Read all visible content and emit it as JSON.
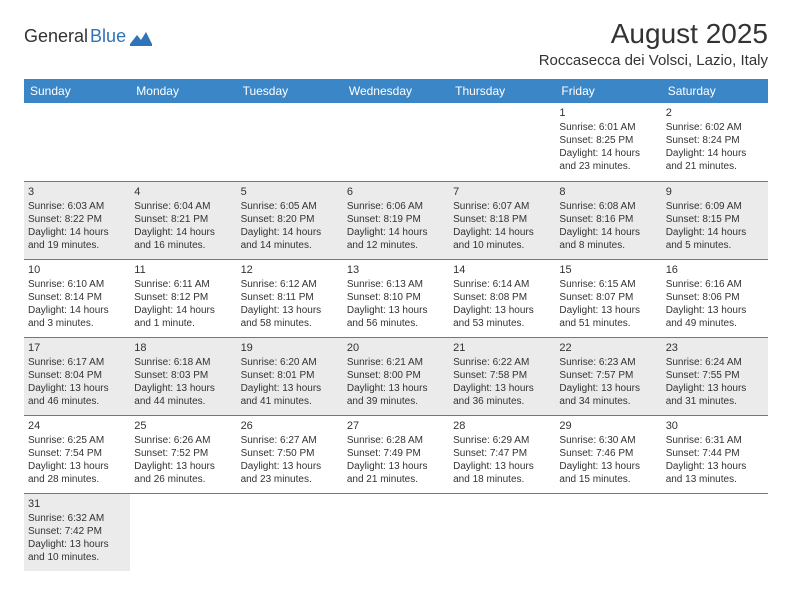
{
  "logo": {
    "text_dark": "General",
    "text_blue": "Blue"
  },
  "title": {
    "month": "August 2025",
    "location": "Roccasecca dei Volsci, Lazio, Italy"
  },
  "colors": {
    "header_bg": "#3b86c7",
    "header_text": "#ffffff",
    "shade_bg": "#ebebeb",
    "rule": "#3b86c7",
    "text": "#333333"
  },
  "columns": [
    "Sunday",
    "Monday",
    "Tuesday",
    "Wednesday",
    "Thursday",
    "Friday",
    "Saturday"
  ],
  "weeks": [
    [
      {
        "n": "",
        "lines": [],
        "shade": false,
        "empty": true
      },
      {
        "n": "",
        "lines": [],
        "shade": false,
        "empty": true
      },
      {
        "n": "",
        "lines": [],
        "shade": false,
        "empty": true
      },
      {
        "n": "",
        "lines": [],
        "shade": false,
        "empty": true
      },
      {
        "n": "",
        "lines": [],
        "shade": false,
        "empty": true
      },
      {
        "n": "1",
        "lines": [
          "Sunrise: 6:01 AM",
          "Sunset: 8:25 PM",
          "Daylight: 14 hours",
          "and 23 minutes."
        ],
        "shade": false
      },
      {
        "n": "2",
        "lines": [
          "Sunrise: 6:02 AM",
          "Sunset: 8:24 PM",
          "Daylight: 14 hours",
          "and 21 minutes."
        ],
        "shade": false
      }
    ],
    [
      {
        "n": "3",
        "lines": [
          "Sunrise: 6:03 AM",
          "Sunset: 8:22 PM",
          "Daylight: 14 hours",
          "and 19 minutes."
        ],
        "shade": true
      },
      {
        "n": "4",
        "lines": [
          "Sunrise: 6:04 AM",
          "Sunset: 8:21 PM",
          "Daylight: 14 hours",
          "and 16 minutes."
        ],
        "shade": true
      },
      {
        "n": "5",
        "lines": [
          "Sunrise: 6:05 AM",
          "Sunset: 8:20 PM",
          "Daylight: 14 hours",
          "and 14 minutes."
        ],
        "shade": true
      },
      {
        "n": "6",
        "lines": [
          "Sunrise: 6:06 AM",
          "Sunset: 8:19 PM",
          "Daylight: 14 hours",
          "and 12 minutes."
        ],
        "shade": true
      },
      {
        "n": "7",
        "lines": [
          "Sunrise: 6:07 AM",
          "Sunset: 8:18 PM",
          "Daylight: 14 hours",
          "and 10 minutes."
        ],
        "shade": true
      },
      {
        "n": "8",
        "lines": [
          "Sunrise: 6:08 AM",
          "Sunset: 8:16 PM",
          "Daylight: 14 hours",
          "and 8 minutes."
        ],
        "shade": true
      },
      {
        "n": "9",
        "lines": [
          "Sunrise: 6:09 AM",
          "Sunset: 8:15 PM",
          "Daylight: 14 hours",
          "and 5 minutes."
        ],
        "shade": true
      }
    ],
    [
      {
        "n": "10",
        "lines": [
          "Sunrise: 6:10 AM",
          "Sunset: 8:14 PM",
          "Daylight: 14 hours",
          "and 3 minutes."
        ],
        "shade": false
      },
      {
        "n": "11",
        "lines": [
          "Sunrise: 6:11 AM",
          "Sunset: 8:12 PM",
          "Daylight: 14 hours",
          "and 1 minute."
        ],
        "shade": false
      },
      {
        "n": "12",
        "lines": [
          "Sunrise: 6:12 AM",
          "Sunset: 8:11 PM",
          "Daylight: 13 hours",
          "and 58 minutes."
        ],
        "shade": false
      },
      {
        "n": "13",
        "lines": [
          "Sunrise: 6:13 AM",
          "Sunset: 8:10 PM",
          "Daylight: 13 hours",
          "and 56 minutes."
        ],
        "shade": false
      },
      {
        "n": "14",
        "lines": [
          "Sunrise: 6:14 AM",
          "Sunset: 8:08 PM",
          "Daylight: 13 hours",
          "and 53 minutes."
        ],
        "shade": false
      },
      {
        "n": "15",
        "lines": [
          "Sunrise: 6:15 AM",
          "Sunset: 8:07 PM",
          "Daylight: 13 hours",
          "and 51 minutes."
        ],
        "shade": false
      },
      {
        "n": "16",
        "lines": [
          "Sunrise: 6:16 AM",
          "Sunset: 8:06 PM",
          "Daylight: 13 hours",
          "and 49 minutes."
        ],
        "shade": false
      }
    ],
    [
      {
        "n": "17",
        "lines": [
          "Sunrise: 6:17 AM",
          "Sunset: 8:04 PM",
          "Daylight: 13 hours",
          "and 46 minutes."
        ],
        "shade": true
      },
      {
        "n": "18",
        "lines": [
          "Sunrise: 6:18 AM",
          "Sunset: 8:03 PM",
          "Daylight: 13 hours",
          "and 44 minutes."
        ],
        "shade": true
      },
      {
        "n": "19",
        "lines": [
          "Sunrise: 6:20 AM",
          "Sunset: 8:01 PM",
          "Daylight: 13 hours",
          "and 41 minutes."
        ],
        "shade": true
      },
      {
        "n": "20",
        "lines": [
          "Sunrise: 6:21 AM",
          "Sunset: 8:00 PM",
          "Daylight: 13 hours",
          "and 39 minutes."
        ],
        "shade": true
      },
      {
        "n": "21",
        "lines": [
          "Sunrise: 6:22 AM",
          "Sunset: 7:58 PM",
          "Daylight: 13 hours",
          "and 36 minutes."
        ],
        "shade": true
      },
      {
        "n": "22",
        "lines": [
          "Sunrise: 6:23 AM",
          "Sunset: 7:57 PM",
          "Daylight: 13 hours",
          "and 34 minutes."
        ],
        "shade": true
      },
      {
        "n": "23",
        "lines": [
          "Sunrise: 6:24 AM",
          "Sunset: 7:55 PM",
          "Daylight: 13 hours",
          "and 31 minutes."
        ],
        "shade": true
      }
    ],
    [
      {
        "n": "24",
        "lines": [
          "Sunrise: 6:25 AM",
          "Sunset: 7:54 PM",
          "Daylight: 13 hours",
          "and 28 minutes."
        ],
        "shade": false
      },
      {
        "n": "25",
        "lines": [
          "Sunrise: 6:26 AM",
          "Sunset: 7:52 PM",
          "Daylight: 13 hours",
          "and 26 minutes."
        ],
        "shade": false
      },
      {
        "n": "26",
        "lines": [
          "Sunrise: 6:27 AM",
          "Sunset: 7:50 PM",
          "Daylight: 13 hours",
          "and 23 minutes."
        ],
        "shade": false
      },
      {
        "n": "27",
        "lines": [
          "Sunrise: 6:28 AM",
          "Sunset: 7:49 PM",
          "Daylight: 13 hours",
          "and 21 minutes."
        ],
        "shade": false
      },
      {
        "n": "28",
        "lines": [
          "Sunrise: 6:29 AM",
          "Sunset: 7:47 PM",
          "Daylight: 13 hours",
          "and 18 minutes."
        ],
        "shade": false
      },
      {
        "n": "29",
        "lines": [
          "Sunrise: 6:30 AM",
          "Sunset: 7:46 PM",
          "Daylight: 13 hours",
          "and 15 minutes."
        ],
        "shade": false
      },
      {
        "n": "30",
        "lines": [
          "Sunrise: 6:31 AM",
          "Sunset: 7:44 PM",
          "Daylight: 13 hours",
          "and 13 minutes."
        ],
        "shade": false
      }
    ],
    [
      {
        "n": "31",
        "lines": [
          "Sunrise: 6:32 AM",
          "Sunset: 7:42 PM",
          "Daylight: 13 hours",
          "and 10 minutes."
        ],
        "shade": true
      },
      {
        "n": "",
        "lines": [],
        "shade": false,
        "empty": true
      },
      {
        "n": "",
        "lines": [],
        "shade": false,
        "empty": true
      },
      {
        "n": "",
        "lines": [],
        "shade": false,
        "empty": true
      },
      {
        "n": "",
        "lines": [],
        "shade": false,
        "empty": true
      },
      {
        "n": "",
        "lines": [],
        "shade": false,
        "empty": true
      },
      {
        "n": "",
        "lines": [],
        "shade": false,
        "empty": true
      }
    ]
  ]
}
